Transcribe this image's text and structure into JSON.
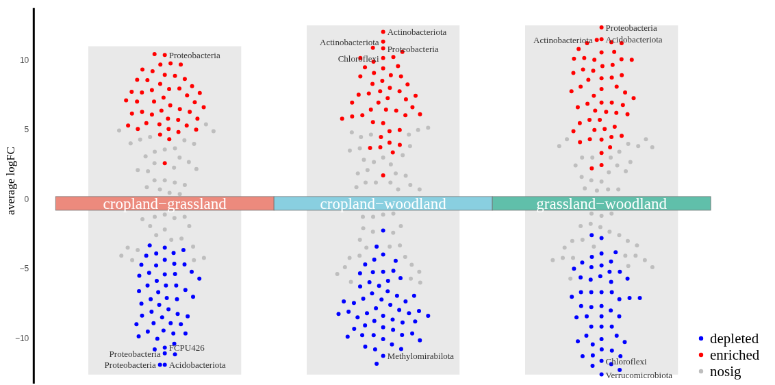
{
  "chart_data": {
    "type": "scatter",
    "ylabel": "average logFC",
    "categories": [
      "cropland−grassland",
      "cropland−woodland",
      "grassland−woodland"
    ],
    "ylim": [
      -13.25,
      13.75
    ],
    "yticks": [
      {
        "value": -10,
        "label": "−10"
      },
      {
        "value": -5,
        "label": "−5"
      },
      0,
      5,
      10
    ],
    "legend": "bottom right",
    "marker": "circle",
    "annotations": [
      {
        "text": "Proteobacteria",
        "x": "cropland−grassland",
        "y": 10.38
      },
      {
        "text": "FCPU426",
        "x": "cropland−grassland",
        "y": -10.66
      },
      {
        "text": "Proteobacteria",
        "x": "cropland−grassland",
        "y": -11.07
      },
      {
        "text": "Acidobacteriota",
        "x": "cropland−grassland",
        "y": -11.89
      },
      {
        "text": "Proteobacteria",
        "x": "cropland−grassland",
        "y": -11.89
      },
      {
        "text": "Actinobacteriota",
        "x": "cropland−woodland",
        "y": 12.04
      },
      {
        "text": "Proteobacteria",
        "x": "cropland−woodland",
        "y": 10.85
      },
      {
        "text": "Actinobacteriota",
        "x": "cropland−woodland",
        "y": 11.33
      },
      {
        "text": "Chloroflexi",
        "x": "cropland−woodland",
        "y": 10.15
      },
      {
        "text": "Methylomirabilota",
        "x": "cropland−woodland",
        "y": -11.25
      },
      {
        "text": "Acidobacteriota",
        "x": "grassland−woodland",
        "y": 11.51
      },
      {
        "text": "Proteobacteria",
        "x": "grassland−woodland",
        "y": 12.36
      },
      {
        "text": "Actinobacteriota",
        "x": "grassland−woodland",
        "y": 11.46
      },
      {
        "text": "Chloroflexi",
        "x": "grassland−woodland",
        "y": -11.61
      },
      {
        "text": "Verrucomicrobiota",
        "x": "grassland−woodland",
        "y": -12.59
      }
    ],
    "series": [
      {
        "type": "bar",
        "base": [
          -12.6,
          -12.6,
          -12.6
        ],
        "values": [
          23.6,
          25.1,
          25.1
        ],
        "color": "#e9e9e9"
      },
      {
        "name": "depleted",
        "color": "#0000ff",
        "x": [
          "cropland−grassland",
          "cropland−grassland",
          "cropland−grassland",
          "cropland−grassland",
          "cropland−grassland",
          "cropland−grassland",
          "cropland−grassland",
          "cropland−grassland",
          "cropland−grassland",
          "cropland−grassland",
          "cropland−grassland",
          "cropland−grassland",
          "cropland−grassland",
          "cropland−grassland",
          "cropland−grassland",
          "cropland−grassland",
          "cropland−grassland",
          "cropland−grassland",
          "cropland−grassland",
          "cropland−grassland",
          "cropland−grassland",
          "cropland−grassland",
          "cropland−grassland",
          "cropland−grassland",
          "cropland−grassland",
          "cropland−grassland",
          "cropland−grassland",
          "cropland−grassland",
          "cropland−grassland",
          "cropland−grassland",
          "cropland−grassland",
          "cropland−grassland",
          "cropland−grassland",
          "cropland−grassland",
          "cropland−grassland",
          "cropland−grassland",
          "cropland−grassland",
          "cropland−grassland",
          "cropland−grassland",
          "cropland−grassland",
          "cropland−grassland",
          "cropland−grassland",
          "cropland−grassland",
          "cropland−grassland",
          "cropland−grassland",
          "cropland−grassland",
          "cropland−grassland",
          "cropland−grassland",
          "cropland−grassland",
          "cropland−grassland",
          "cropland−grassland",
          "cropland−grassland",
          "cropland−grassland",
          "cropland−woodland",
          "cropland−woodland",
          "cropland−woodland",
          "cropland−woodland",
          "cropland−woodland",
          "cropland−woodland",
          "cropland−woodland",
          "cropland−woodland",
          "cropland−woodland",
          "cropland−woodland",
          "cropland−woodland",
          "cropland−woodland",
          "cropland−woodland",
          "cropland−woodland",
          "cropland−woodland",
          "cropland−woodland",
          "cropland−woodland",
          "cropland−woodland",
          "cropland−woodland",
          "cropland−woodland",
          "cropland−woodland",
          "cropland−woodland",
          "cropland−woodland",
          "cropland−woodland",
          "cropland−woodland",
          "cropland−woodland",
          "cropland−woodland",
          "cropland−woodland",
          "cropland−woodland",
          "cropland−woodland",
          "cropland−woodland",
          "cropland−woodland",
          "cropland−woodland",
          "cropland−woodland",
          "cropland−woodland",
          "cropland−woodland",
          "cropland−woodland",
          "cropland−woodland",
          "cropland−woodland",
          "cropland−woodland",
          "cropland−woodland",
          "cropland−woodland",
          "cropland−woodland",
          "cropland−woodland",
          "cropland−woodland",
          "cropland−woodland",
          "cropland−woodland",
          "cropland−woodland",
          "cropland−woodland",
          "cropland−woodland",
          "cropland−woodland",
          "cropland−woodland",
          "cropland−woodland",
          "cropland−woodland",
          "cropland−woodland",
          "cropland−woodland",
          "grassland−woodland",
          "grassland−woodland",
          "grassland−woodland",
          "grassland−woodland",
          "grassland−woodland",
          "grassland−woodland",
          "grassland−woodland",
          "grassland−woodland",
          "grassland−woodland",
          "grassland−woodland",
          "grassland−woodland",
          "grassland−woodland",
          "grassland−woodland",
          "grassland−woodland",
          "grassland−woodland",
          "grassland−woodland",
          "grassland−woodland",
          "grassland−woodland",
          "grassland−woodland",
          "grassland−woodland",
          "grassland−woodland",
          "grassland−woodland",
          "grassland−woodland",
          "grassland−woodland",
          "grassland−woodland",
          "grassland−woodland",
          "grassland−woodland",
          "grassland−woodland",
          "grassland−woodland",
          "grassland−woodland",
          "grassland−woodland",
          "grassland−woodland",
          "grassland−woodland",
          "grassland−woodland",
          "grassland−woodland",
          "grassland−woodland",
          "grassland−woodland",
          "grassland−woodland",
          "grassland−woodland",
          "grassland−woodland",
          "grassland−woodland",
          "grassland−woodland",
          "grassland−woodland",
          "grassland−woodland",
          "grassland−woodland",
          "grassland−woodland",
          "grassland−woodland",
          "grassland−woodland",
          "grassland−woodland",
          "grassland−woodland",
          "grassland−woodland",
          "grassland−woodland"
        ],
        "values": [
          -3.48,
          -3.89,
          -3.86,
          -4.06,
          -3.65,
          -4.35,
          -4.75,
          -4.63,
          -4.68,
          -4.71,
          -5.4,
          -5.21,
          -5.37,
          -5.29,
          -5.5,
          -5.7,
          -5.86,
          -6.19,
          -6.19,
          -6.19,
          -6.68,
          -6.52,
          -6.6,
          -7.09,
          -7.18,
          -7.18,
          -7.01,
          -7.5,
          -7.59,
          -7.91,
          -8.08,
          -8.24,
          -8.36,
          -8.49,
          -8.41,
          -8.9,
          -8.9,
          -8.98,
          -8.98,
          -9.43,
          -9.64,
          -9.51,
          -9.64,
          -9.85,
          -10.02,
          -10.38,
          -10.66,
          -11.07,
          -11.89,
          -3.32,
          -10.79,
          -11.15,
          -11.89,
          -2.25,
          -3.97,
          -4.34,
          -5.21,
          -5.24,
          -5.14,
          -5.67,
          -5.86,
          -6.22,
          -6.62,
          -6.76,
          -6.93,
          -7.14,
          -7.21,
          -7.34,
          -7.45,
          -7.59,
          -7.83,
          -7.96,
          -8.19,
          -8.19,
          -8.08,
          -8.37,
          -8.49,
          -8.75,
          -8.65,
          -8.85,
          -9.2,
          -9.06,
          -9.39,
          -10.05,
          -9.77,
          -9.75,
          -9.77,
          -9.64,
          -10.43,
          -10.79,
          -11.25,
          -3.4,
          -4.42,
          -4.68,
          -5.32,
          -5.96,
          -6.27,
          -6.93,
          -7.34,
          -8.03,
          -8.24,
          -8.37,
          -8.78,
          -9.31,
          -9.88,
          -10.13,
          -10.59,
          -10.76,
          -11.82,
          -2.79,
          -3.89,
          -4.14,
          -4.75,
          -4.47,
          -4.88,
          -5.21,
          -5.21,
          -5.53,
          -5.78,
          -5.62,
          -5.7,
          -5.94,
          -6.68,
          -6.68,
          -6.68,
          -6.68,
          -7.18,
          -7.09,
          -7.01,
          -7.09,
          -7.67,
          -7.75,
          -7.99,
          -7.67,
          -8.41,
          -8.41,
          -8.41,
          -8.49,
          -9.15,
          -9.15,
          -9.15,
          -10.05,
          -9.8,
          -9.8,
          -10.21,
          -10.43,
          -10.26,
          -10.79,
          -10.87,
          -11.22,
          -11.61,
          -11.97,
          -12.59,
          -2.58,
          -3.81,
          -4.55,
          -4.99,
          -11.85,
          -12.27,
          -11.28,
          -11.28
        ]
      },
      {
        "name": "enriched",
        "color": "#ff0000",
        "x": [
          "cropland−grassland",
          "cropland−grassland",
          "cropland−grassland",
          "cropland−grassland",
          "cropland−grassland",
          "cropland−grassland",
          "cropland−grassland",
          "cropland−grassland",
          "cropland−grassland",
          "cropland−grassland",
          "cropland−grassland",
          "cropland−grassland",
          "cropland−grassland",
          "cropland−grassland",
          "cropland−grassland",
          "cropland−grassland",
          "cropland−grassland",
          "cropland−grassland",
          "cropland−grassland",
          "cropland−grassland",
          "cropland−grassland",
          "cropland−grassland",
          "cropland−grassland",
          "cropland−grassland",
          "cropland−grassland",
          "cropland−grassland",
          "cropland−grassland",
          "cropland−grassland",
          "cropland−grassland",
          "cropland−grassland",
          "cropland−grassland",
          "cropland−grassland",
          "cropland−grassland",
          "cropland−grassland",
          "cropland−grassland",
          "cropland−grassland",
          "cropland−grassland",
          "cropland−grassland",
          "cropland−grassland",
          "cropland−grassland",
          "cropland−grassland",
          "cropland−grassland",
          "cropland−grassland",
          "cropland−grassland",
          "cropland−grassland",
          "cropland−grassland",
          "cropland−grassland",
          "cropland−grassland",
          "cropland−woodland",
          "cropland−woodland",
          "cropland−woodland",
          "cropland−woodland",
          "cropland−woodland",
          "cropland−woodland",
          "cropland−woodland",
          "cropland−woodland",
          "cropland−woodland",
          "cropland−woodland",
          "cropland−woodland",
          "cropland−woodland",
          "cropland−woodland",
          "cropland−woodland",
          "cropland−woodland",
          "cropland−woodland",
          "cropland−woodland",
          "cropland−woodland",
          "cropland−woodland",
          "cropland−woodland",
          "cropland−woodland",
          "cropland−woodland",
          "cropland−woodland",
          "cropland−woodland",
          "cropland−woodland",
          "cropland−woodland",
          "cropland−woodland",
          "cropland−woodland",
          "cropland−woodland",
          "cropland−woodland",
          "cropland−woodland",
          "cropland−woodland",
          "cropland−woodland",
          "cropland−woodland",
          "cropland−woodland",
          "cropland−woodland",
          "cropland−woodland",
          "cropland−woodland",
          "cropland−woodland",
          "cropland−woodland",
          "cropland−woodland",
          "cropland−woodland",
          "cropland−woodland",
          "cropland−woodland",
          "cropland−woodland",
          "cropland−woodland",
          "cropland−woodland",
          "cropland−woodland",
          "cropland−woodland",
          "grassland−woodland",
          "grassland−woodland",
          "grassland−woodland",
          "grassland−woodland",
          "grassland−woodland",
          "grassland−woodland",
          "grassland−woodland",
          "grassland−woodland",
          "grassland−woodland",
          "grassland−woodland",
          "grassland−woodland",
          "grassland−woodland",
          "grassland−woodland",
          "grassland−woodland",
          "grassland−woodland",
          "grassland−woodland",
          "grassland−woodland",
          "grassland−woodland",
          "grassland−woodland",
          "grassland−woodland",
          "grassland−woodland",
          "grassland−woodland",
          "grassland−woodland",
          "grassland−woodland",
          "grassland−woodland",
          "grassland−woodland",
          "grassland−woodland",
          "grassland−woodland",
          "grassland−woodland",
          "grassland−woodland",
          "grassland−woodland",
          "grassland−woodland",
          "grassland−woodland",
          "grassland−woodland",
          "grassland−woodland",
          "grassland−woodland",
          "grassland−woodland",
          "grassland−woodland",
          "grassland−woodland",
          "grassland−woodland",
          "grassland−woodland",
          "grassland−woodland",
          "grassland−woodland",
          "grassland−woodland",
          "grassland−woodland",
          "grassland−woodland",
          "grassland−woodland",
          "grassland−woodland",
          "grassland−woodland",
          "grassland−woodland",
          "grassland−woodland",
          "grassland−woodland",
          "grassland−woodland",
          "grassland−woodland",
          "grassland−woodland"
        ],
        "values": [
          10.43,
          9.77,
          9.69,
          9.21,
          8.95,
          8.87,
          8.57,
          8.65,
          8.59,
          8.29,
          7.93,
          7.96,
          8.13,
          7.85,
          7.68,
          7.73,
          7.31,
          7.64,
          7.47,
          6.75,
          7.03,
          7.11,
          7.03,
          6.98,
          6.49,
          6.62,
          6.37,
          6.09,
          6.29,
          6.29,
          6.16,
          5.8,
          5.8,
          5.71,
          5.39,
          5.47,
          5.3,
          5.06,
          5.06,
          5.01,
          5.3,
          4.65,
          2.59,
          10.38,
          9.69,
          9.33,
          4.32,
          4.84,
          12.04,
          10.89,
          10.85,
          10.15,
          10.23,
          10.59,
          9.9,
          9.57,
          9.41,
          9.49,
          9.08,
          8.92,
          8.83,
          8.83,
          8.51,
          8.29,
          8.26,
          8.01,
          7.77,
          7.77,
          7.6,
          7.52,
          7.27,
          7.19,
          6.95,
          6.95,
          6.45,
          6.45,
          6.37,
          6.04,
          6.04,
          5.96,
          5.47,
          5.55,
          4.89,
          4.48,
          4.98,
          4.07,
          3.74,
          3.69,
          3.37,
          11.33,
          10.15,
          1.72,
          3.91,
          6.62,
          6.12,
          5.8,
          7.44,
          12.36,
          11.51,
          11.3,
          11.22,
          11.22,
          10.8,
          10.56,
          10.59,
          10.03,
          10.15,
          10.07,
          10.1,
          10.03,
          9.57,
          9.66,
          9.24,
          9.33,
          8.7,
          8.75,
          8.59,
          8.1,
          8.1,
          7.93,
          7.44,
          7.68,
          6.95,
          6.95,
          6.86,
          6.37,
          6.29,
          6.21,
          5.71,
          5.71,
          5.06,
          5.22,
          4.98,
          4.29,
          4.48,
          4.32,
          4.56,
          4.11,
          3.33,
          2.46,
          11.46,
          2.23,
          3.74,
          8.92,
          9.08,
          7.77,
          7.27,
          6.78,
          6.62,
          6.12,
          5.47,
          4.89
        ]
      },
      {
        "name": "nosig",
        "color": "#bebebe",
        "x": [
          "cropland−grassland",
          "cropland−grassland",
          "cropland−grassland",
          "cropland−grassland",
          "cropland−grassland",
          "cropland−grassland",
          "cropland−grassland",
          "cropland−grassland",
          "cropland−grassland",
          "cropland−grassland",
          "cropland−grassland",
          "cropland−grassland",
          "cropland−grassland",
          "cropland−grassland",
          "cropland−grassland",
          "cropland−grassland",
          "cropland−grassland",
          "cropland−grassland",
          "cropland−grassland",
          "cropland−grassland",
          "cropland−grassland",
          "cropland−grassland",
          "cropland−grassland",
          "cropland−grassland",
          "cropland−grassland",
          "cropland−grassland",
          "cropland−grassland",
          "cropland−grassland",
          "cropland−grassland",
          "cropland−grassland",
          "cropland−grassland",
          "cropland−grassland",
          "cropland−grassland",
          "cropland−grassland",
          "cropland−grassland",
          "cropland−grassland",
          "cropland−grassland",
          "cropland−grassland",
          "cropland−grassland",
          "cropland−grassland",
          "cropland−grassland",
          "cropland−grassland",
          "cropland−grassland",
          "cropland−grassland",
          "cropland−grassland",
          "cropland−woodland",
          "cropland−woodland",
          "cropland−woodland",
          "cropland−woodland",
          "cropland−woodland",
          "cropland−woodland",
          "cropland−woodland",
          "cropland−woodland",
          "cropland−woodland",
          "cropland−woodland",
          "cropland−woodland",
          "cropland−woodland",
          "cropland−woodland",
          "cropland−woodland",
          "cropland−woodland",
          "cropland−woodland",
          "cropland−woodland",
          "cropland−woodland",
          "cropland−woodland",
          "cropland−woodland",
          "cropland−woodland",
          "cropland−woodland",
          "cropland−woodland",
          "cropland−woodland",
          "cropland−woodland",
          "cropland−woodland",
          "cropland−woodland",
          "cropland−woodland",
          "cropland−woodland",
          "cropland−woodland",
          "cropland−woodland",
          "cropland−woodland",
          "cropland−woodland",
          "cropland−woodland",
          "cropland−woodland",
          "cropland−woodland",
          "cropland−woodland",
          "cropland−woodland",
          "cropland−woodland",
          "cropland−woodland",
          "cropland−woodland",
          "cropland−woodland",
          "cropland−woodland",
          "cropland−woodland",
          "cropland−woodland",
          "cropland−woodland",
          "cropland−woodland",
          "grassland−woodland",
          "grassland−woodland",
          "grassland−woodland",
          "grassland−woodland",
          "grassland−woodland",
          "grassland−woodland",
          "grassland−woodland",
          "grassland−woodland",
          "grassland−woodland",
          "grassland−woodland",
          "grassland−woodland",
          "grassland−woodland",
          "grassland−woodland",
          "grassland−woodland",
          "grassland−woodland",
          "grassland−woodland",
          "grassland−woodland",
          "grassland−woodland",
          "grassland−woodland",
          "grassland−woodland",
          "grassland−woodland",
          "grassland−woodland",
          "grassland−woodland",
          "grassland−woodland",
          "grassland−woodland",
          "grassland−woodland",
          "grassland−woodland",
          "grassland−woodland",
          "grassland−woodland",
          "grassland−woodland",
          "grassland−woodland",
          "grassland−woodland",
          "grassland−woodland",
          "grassland−woodland",
          "grassland−woodland",
          "grassland−woodland",
          "grassland−woodland",
          "grassland−woodland",
          "grassland−woodland",
          "grassland−woodland",
          "grassland−woodland",
          "grassland−woodland",
          "grassland−woodland",
          "grassland−woodland",
          "grassland−woodland"
        ],
        "values": [
          5.39,
          4.94,
          4.89,
          4.48,
          4.24,
          4.29,
          3.99,
          4.02,
          3.58,
          3.42,
          3.66,
          3.0,
          3.09,
          2.59,
          2.68,
          2.27,
          2.02,
          2.1,
          2.18,
          1.36,
          1.36,
          1.2,
          0.87,
          1.03,
          0.71,
          0.46,
          -1.1,
          -1.26,
          -1.35,
          -1.26,
          -2.17,
          -1.92,
          -1.92,
          -2.58,
          -2.91,
          -2.82,
          -3.65,
          -3.4,
          -3.48,
          -4.38,
          -4.38,
          -4.22,
          0.38,
          -1.43,
          -4.06,
          4.65,
          4.48,
          4.65,
          4.81,
          3.83,
          3.66,
          3.17,
          3.0,
          2.68,
          2.51,
          2.1,
          1.86,
          1.69,
          1.2,
          1.2,
          1.2,
          0.71,
          -1.1,
          -1.26,
          -1.02,
          -2.33,
          -2.41,
          -1.92,
          -3.4,
          -3.48,
          -3.32,
          -4.14,
          -4.06,
          -4.71,
          -5.7,
          -5.94,
          4.98,
          5.14,
          3.5,
          2.84,
          1.86,
          1.03,
          0.87,
          0.71,
          -1.26,
          -2.09,
          -2.91,
          -4.22,
          -4.88,
          -5.21,
          -5.37,
          -5.99,
          3.99,
          4.32,
          3.83,
          4.32,
          3.0,
          3.0,
          3.0,
          2.43,
          1.94,
          2.43,
          2.02,
          1.28,
          1.36,
          0.71,
          0.79,
          0.71,
          -1.18,
          -1.02,
          -1.02,
          -2.33,
          -2.0,
          -2.58,
          -3.4,
          -2.91,
          -2.99,
          -4.06,
          -4.22,
          -4.06,
          -5.7,
          -4.79,
          3.83,
          3.74,
          3.42,
          2.68,
          1.61,
          0.62,
          -1.76,
          -1.92,
          -2.99,
          -3.48,
          -3.32,
          -4.22,
          -4.38,
          -4.38,
          -4.88
        ]
      }
    ]
  }
}
